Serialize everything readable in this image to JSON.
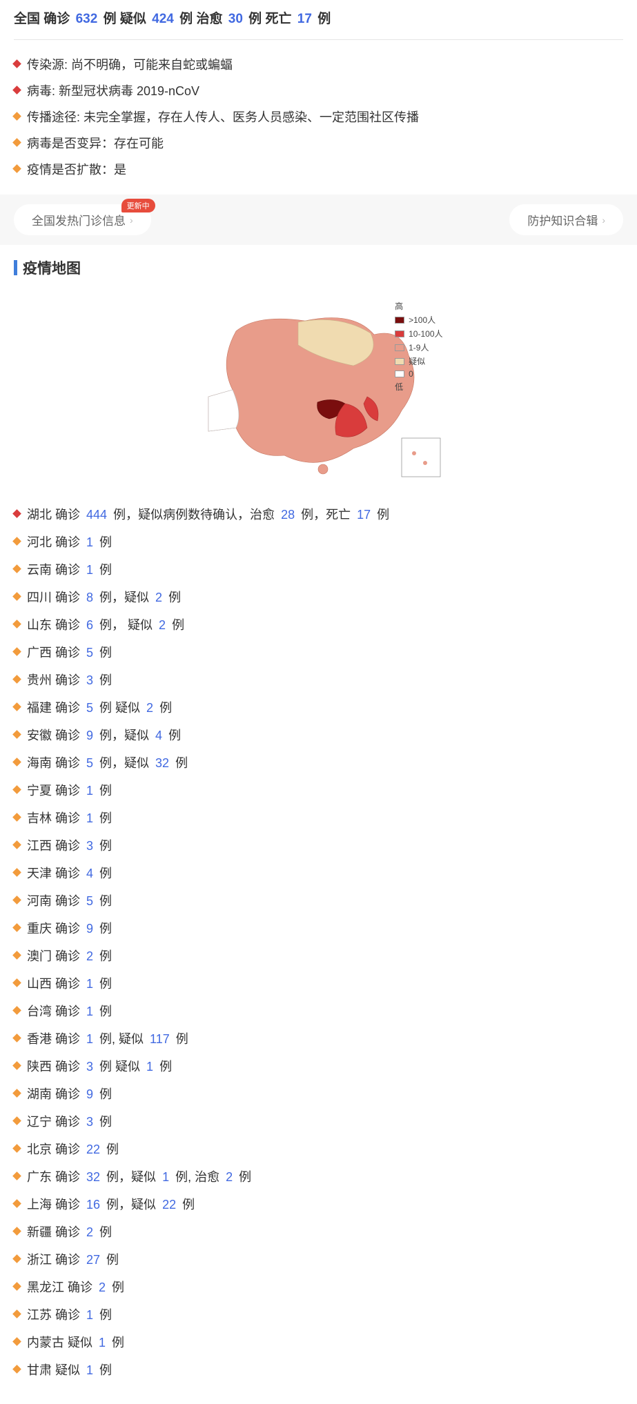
{
  "header": {
    "label_nation": "全国",
    "label_confirmed": "确诊",
    "confirmed": "632",
    "unit": "例",
    "label_suspected": "疑似",
    "suspected": "424",
    "label_cured": "治愈",
    "cured": "30",
    "label_death": "死亡",
    "death": "17"
  },
  "info": [
    {
      "bullet": "red",
      "text": "传染源: 尚不明确，可能来自蛇或蝙蝠"
    },
    {
      "bullet": "red",
      "text": "病毒: 新型冠状病毒 2019-nCoV"
    },
    {
      "bullet": "orange",
      "text": "传播途径: 未完全掌握，存在人传人、医务人员感染、一定范围社区传播"
    },
    {
      "bullet": "orange",
      "text": "病毒是否变异：存在可能"
    },
    {
      "bullet": "orange",
      "text": "疫情是否扩散：是"
    }
  ],
  "buttons": {
    "left_label": "全国发热门诊信息",
    "badge": "更新中",
    "right_label": "防护知识合辑"
  },
  "section": {
    "map_title": "疫情地图"
  },
  "map": {
    "legend_high": "高",
    "legend_low": "低",
    "levels": [
      {
        "color": "#7a0e0e",
        "label": ">100人"
      },
      {
        "color": "#d93c3c",
        "label": "10-100人"
      },
      {
        "color": "#e89c8a",
        "label": "1-9人"
      },
      {
        "color": "#f0dbb0",
        "label": "疑似"
      },
      {
        "color": "#ffffff",
        "label": "0"
      }
    ]
  },
  "provinces": [
    {
      "bullet": "red",
      "text": "湖北 确诊 {444} 例，疑似病例数待确认，治愈 {28} 例，死亡 {17} 例"
    },
    {
      "bullet": "orange",
      "text": "河北 确诊 {1} 例"
    },
    {
      "bullet": "orange",
      "text": "云南 确诊 {1} 例"
    },
    {
      "bullet": "orange",
      "text": "四川 确诊 {8} 例，疑似 {2} 例"
    },
    {
      "bullet": "orange",
      "text": "山东 确诊 {6} 例， 疑似 {2} 例"
    },
    {
      "bullet": "orange",
      "text": "广西 确诊 {5} 例"
    },
    {
      "bullet": "orange",
      "text": "贵州 确诊 {3} 例"
    },
    {
      "bullet": "orange",
      "text": "福建 确诊 {5} 例 疑似 {2} 例"
    },
    {
      "bullet": "orange",
      "text": "安徽 确诊 {9} 例，疑似 {4} 例"
    },
    {
      "bullet": "orange",
      "text": "海南 确诊 {5} 例，疑似 {32} 例"
    },
    {
      "bullet": "orange",
      "text": "宁夏 确诊 {1} 例"
    },
    {
      "bullet": "orange",
      "text": "吉林 确诊 {1} 例"
    },
    {
      "bullet": "orange",
      "text": "江西 确诊 {3} 例"
    },
    {
      "bullet": "orange",
      "text": "天津 确诊 {4} 例"
    },
    {
      "bullet": "orange",
      "text": "河南 确诊 {5} 例"
    },
    {
      "bullet": "orange",
      "text": "重庆 确诊 {9} 例"
    },
    {
      "bullet": "orange",
      "text": "澳门 确诊 {2} 例"
    },
    {
      "bullet": "orange",
      "text": "山西 确诊 {1} 例"
    },
    {
      "bullet": "orange",
      "text": "台湾 确诊 {1} 例"
    },
    {
      "bullet": "orange",
      "text": "香港 确诊 {1} 例, 疑似 {117} 例"
    },
    {
      "bullet": "orange",
      "text": "陕西 确诊 {3} 例 疑似 {1} 例"
    },
    {
      "bullet": "orange",
      "text": "湖南 确诊 {9} 例"
    },
    {
      "bullet": "orange",
      "text": "辽宁 确诊 {3} 例"
    },
    {
      "bullet": "orange",
      "text": "北京 确诊 {22} 例"
    },
    {
      "bullet": "orange",
      "text": "广东 确诊 {32} 例，疑似 {1} 例, 治愈 {2} 例"
    },
    {
      "bullet": "orange",
      "text": "上海 确诊 {16} 例，疑似 {22} 例"
    },
    {
      "bullet": "orange",
      "text": "新疆 确诊 {2} 例"
    },
    {
      "bullet": "orange",
      "text": "浙江 确诊 {27} 例"
    },
    {
      "bullet": "orange",
      "text": "黑龙江 确诊 {2} 例"
    },
    {
      "bullet": "orange",
      "text": "江苏 确诊 {1} 例"
    },
    {
      "bullet": "orange",
      "text": "内蒙古 疑似 {1} 例"
    },
    {
      "bullet": "orange",
      "text": "甘肃 疑似 {1} 例"
    }
  ]
}
